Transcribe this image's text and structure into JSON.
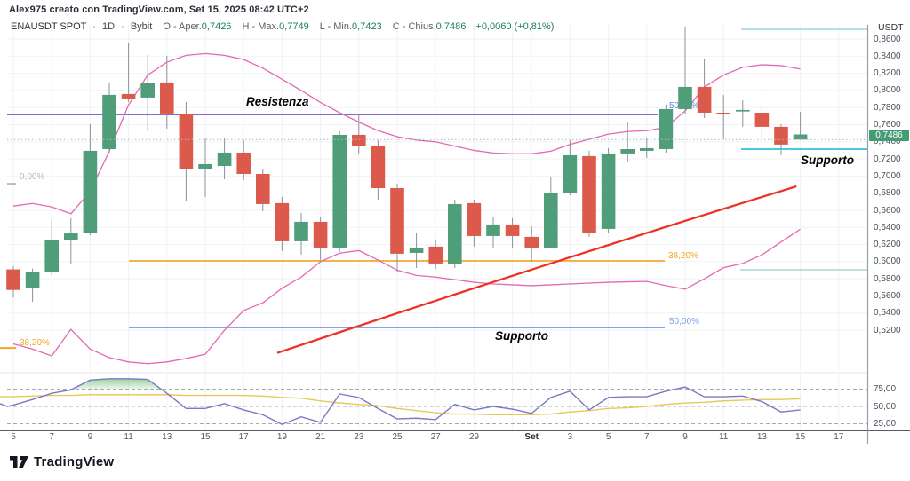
{
  "header": {
    "attribution": "Alex975 creato con TradingView.com, Set 15, 2025 08:42 UTC+2"
  },
  "legend": {
    "symbol": "ENAUSDT SPOT",
    "sep": "·",
    "interval": "1D",
    "exchange": "Bybit",
    "ohlc": [
      {
        "label": "O - Aper.",
        "value": "0,7426"
      },
      {
        "label": "H - Max.",
        "value": "0,7749"
      },
      {
        "label": "L - Min.",
        "value": "0,7423"
      },
      {
        "label": "C - Chius.",
        "value": "0,7486"
      }
    ],
    "change": "+0,0060 (+0,81%)"
  },
  "annotations": {
    "resistenza": {
      "text": "Resistenza",
      "color": "#c93fc4"
    },
    "supporto_blue": {
      "text": "Supporto",
      "color": "#3a6be0"
    },
    "supporto_cyan": {
      "text": "Supporto",
      "color": "#29b8d2"
    }
  },
  "price_badge": {
    "text": "0,7486",
    "bg": "#439c74"
  },
  "footer": {
    "brand": "TradingView"
  },
  "chart_data": {
    "type": "candlestick",
    "symbol": "ENAUSDT SPOT",
    "interval": "1D",
    "exchange": "Bybit",
    "price_axis": {
      "currency": "USDT",
      "max": 0.86,
      "min": 0.52,
      "step": 0.02,
      "labels": [
        "0,8600",
        "0,8400",
        "0,8200",
        "0,8000",
        "0,7800",
        "0,7600",
        "0,7400",
        "0,7200",
        "0,7000",
        "0,6800",
        "0,6600",
        "0,6400",
        "0,6200",
        "0,6000",
        "0,5800",
        "0,5600",
        "0,5400",
        "0,5200"
      ]
    },
    "time_axis": [
      {
        "t": "5",
        "i": 0
      },
      {
        "t": "7",
        "i": 2
      },
      {
        "t": "9",
        "i": 4
      },
      {
        "t": "11",
        "i": 6
      },
      {
        "t": "13",
        "i": 8
      },
      {
        "t": "15",
        "i": 10
      },
      {
        "t": "17",
        "i": 12
      },
      {
        "t": "19",
        "i": 14
      },
      {
        "t": "21",
        "i": 16
      },
      {
        "t": "23",
        "i": 18
      },
      {
        "t": "25",
        "i": 20
      },
      {
        "t": "27",
        "i": 22
      },
      {
        "t": "29",
        "i": 24
      },
      {
        "t": "Set",
        "i": 27,
        "bold": true
      },
      {
        "t": "3",
        "i": 29
      },
      {
        "t": "5",
        "i": 31
      },
      {
        "t": "7",
        "i": 33
      },
      {
        "t": "9",
        "i": 35
      },
      {
        "t": "11",
        "i": 37
      },
      {
        "t": "13",
        "i": 39
      },
      {
        "t": "15",
        "i": 41
      },
      {
        "t": "17",
        "i": 43
      }
    ],
    "candles": [
      [
        0.591,
        0.595,
        0.558,
        0.567
      ],
      [
        0.5688,
        0.592,
        0.5533,
        0.5875
      ],
      [
        0.5875,
        0.6487,
        0.5844,
        0.6248
      ],
      [
        0.6248,
        0.6508,
        0.5979,
        0.633
      ],
      [
        0.634,
        0.7606,
        0.6309,
        0.7295
      ],
      [
        0.7315,
        0.8093,
        0.7274,
        0.7948
      ],
      [
        0.7958,
        0.8559,
        0.7865,
        0.7906
      ],
      [
        0.7917,
        0.8414,
        0.7523,
        0.8082
      ],
      [
        0.8093,
        0.8404,
        0.7554,
        0.773
      ],
      [
        0.773,
        0.7865,
        0.6704,
        0.7087
      ],
      [
        0.7087,
        0.745,
        0.6756,
        0.7139
      ],
      [
        0.7118,
        0.745,
        0.6963,
        0.7274
      ],
      [
        0.7274,
        0.7419,
        0.6953,
        0.7025
      ],
      [
        0.7025,
        0.7087,
        0.659,
        0.6673
      ],
      [
        0.6684,
        0.6756,
        0.6124,
        0.6238
      ],
      [
        0.6238,
        0.657,
        0.6083,
        0.6466
      ],
      [
        0.6466,
        0.6528,
        0.602,
        0.6165
      ],
      [
        0.6165,
        0.7523,
        0.6114,
        0.7481
      ],
      [
        0.7481,
        0.771,
        0.7264,
        0.7346
      ],
      [
        0.7357,
        0.7419,
        0.6725,
        0.6859
      ],
      [
        0.6859,
        0.6911,
        0.5875,
        0.6093
      ],
      [
        0.6103,
        0.633,
        0.5927,
        0.6165
      ],
      [
        0.6176,
        0.6259,
        0.5917,
        0.5979
      ],
      [
        0.5969,
        0.6725,
        0.5927,
        0.6673
      ],
      [
        0.6684,
        0.6725,
        0.6176,
        0.63
      ],
      [
        0.63,
        0.6518,
        0.6155,
        0.6435
      ],
      [
        0.6435,
        0.6508,
        0.6155,
        0.63
      ],
      [
        0.629,
        0.6414,
        0.6,
        0.6165
      ],
      [
        0.6165,
        0.6984,
        0.6155,
        0.6798
      ],
      [
        0.6798,
        0.7419,
        0.6777,
        0.7243
      ],
      [
        0.7233,
        0.7295,
        0.629,
        0.634
      ],
      [
        0.6383,
        0.7326,
        0.634,
        0.7264
      ],
      [
        0.7264,
        0.7626,
        0.717,
        0.7315
      ],
      [
        0.7295,
        0.745,
        0.7212,
        0.7326
      ],
      [
        0.7315,
        0.7834,
        0.7274,
        0.7782
      ],
      [
        0.7782,
        0.8745,
        0.773,
        0.8041
      ],
      [
        0.8041,
        0.8373,
        0.7678,
        0.774
      ],
      [
        0.774,
        0.7948,
        0.743,
        0.7738
      ],
      [
        0.7762,
        0.7886,
        0.7575,
        0.7772
      ],
      [
        0.774,
        0.7813,
        0.745,
        0.7575
      ],
      [
        0.7575,
        0.7606,
        0.7243,
        0.7368
      ],
      [
        0.7426,
        0.7749,
        0.7423,
        0.7486
      ]
    ],
    "bollinger": {
      "color": "#e368b4",
      "upper": [
        0.665,
        0.668,
        0.664,
        0.656,
        0.682,
        0.729,
        0.783,
        0.818,
        0.833,
        0.841,
        0.843,
        0.841,
        0.836,
        0.826,
        0.813,
        0.8,
        0.786,
        0.774,
        0.763,
        0.753,
        0.746,
        0.742,
        0.74,
        0.735,
        0.73,
        0.727,
        0.726,
        0.726,
        0.729,
        0.737,
        0.743,
        0.749,
        0.752,
        0.753,
        0.757,
        0.776,
        0.804,
        0.818,
        0.827,
        0.83,
        0.829,
        0.825
      ],
      "lower": [
        0.504,
        0.498,
        0.49,
        0.521,
        0.498,
        0.488,
        0.483,
        0.481,
        0.483,
        0.487,
        0.492,
        0.52,
        0.543,
        0.552,
        0.569,
        0.582,
        0.6,
        0.61,
        0.613,
        0.602,
        0.59,
        0.584,
        0.582,
        0.579,
        0.576,
        0.574,
        0.573,
        0.572,
        0.573,
        0.574,
        0.575,
        0.576,
        0.5765,
        0.577,
        0.572,
        0.568,
        0.58,
        0.593,
        0.598,
        0.608,
        0.623,
        0.638
      ]
    },
    "trend_line": {
      "color": "#ee3124",
      "from_i": 13.75,
      "from_price": 0.4935,
      "ctrl_i": 28,
      "ctrl_price": 0.6,
      "to_i": 40.8,
      "to_price": 0.688
    },
    "levels": {
      "resistance": {
        "price": 0.772,
        "label": "50,00%",
        "color": "#5b36c9"
      },
      "fib_mid_382": {
        "price": 0.601,
        "label": "38,20%",
        "color": "#f0a722"
      },
      "fib_mid_50": {
        "price": 0.5232,
        "label": "50,00%",
        "color": "#5c87e8"
      },
      "fib_left_0": {
        "price": 0.691,
        "label": "0,00%",
        "color": "#b7bac1"
      },
      "fib_left_382": {
        "price": 0.4993,
        "label": "38,20%",
        "color": "#f0a722"
      },
      "support_cyan": {
        "price": 0.7315,
        "color": "#2ec2dc"
      },
      "teal_top": {
        "price": 0.8714,
        "color": "#9bd4e6"
      },
      "teal_mid": {
        "price": 0.5906,
        "color": "#a9d6cd"
      },
      "prev_close": {
        "price": 0.7426,
        "color": "#b4b7bf"
      }
    },
    "rsi_panel": {
      "axis_labels": [
        "75,00",
        "50,00",
        "25,00"
      ],
      "levels": [
        75,
        50,
        25
      ],
      "line_color": "#7a79c4",
      "ma_color": "#e6c85c",
      "overbought_fill": "#4caf50",
      "rsi": [
        52,
        60,
        69,
        74,
        88,
        90,
        90,
        89,
        69,
        47,
        47,
        54,
        45,
        38,
        24,
        35,
        27,
        68,
        63,
        47,
        32,
        33,
        31,
        53,
        45,
        50,
        46,
        40,
        63,
        72,
        45,
        63,
        64,
        64,
        72,
        78,
        64,
        64,
        65,
        57,
        42,
        45
      ],
      "ma": [
        64,
        65,
        66,
        66,
        67,
        67,
        67,
        67,
        67,
        66,
        66,
        66,
        66,
        65,
        63,
        62,
        58,
        55,
        53,
        51,
        47,
        44,
        41,
        39,
        39,
        38,
        38,
        38,
        39,
        42,
        44,
        47,
        48,
        50,
        53,
        55,
        56,
        58,
        59,
        60,
        60,
        61
      ]
    }
  }
}
